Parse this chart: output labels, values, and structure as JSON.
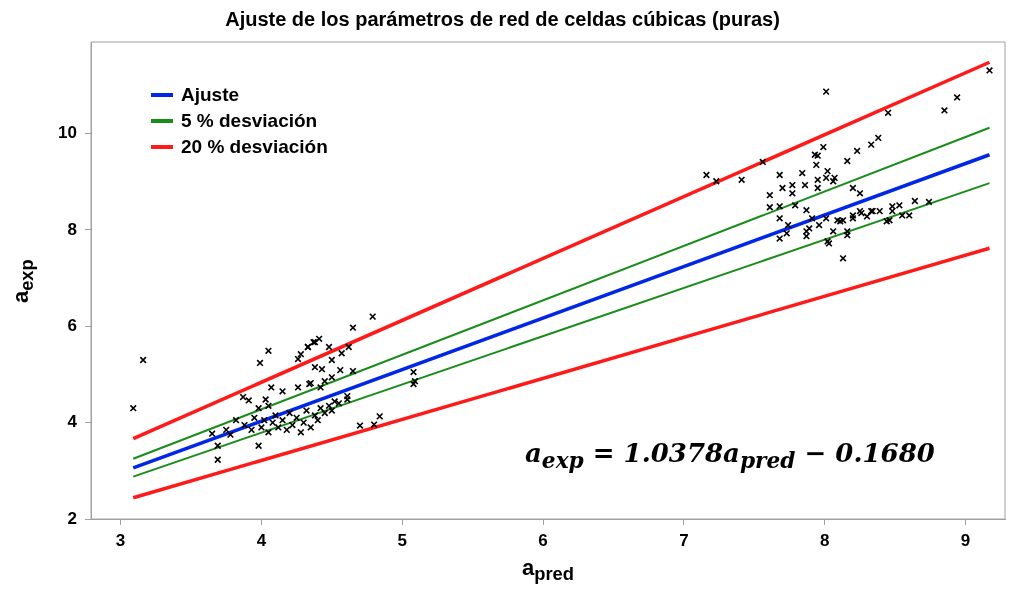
{
  "chart_data": {
    "type": "scatter",
    "title": "Ajuste de los parámetros de red de celdas cúbicas (puras)",
    "xlabel": "a$_{pred}$",
    "ylabel": "a$_{exp}$",
    "xlim": [
      2.79,
      9.28
    ],
    "ylim": [
      2,
      11.9
    ],
    "xticks": [
      3,
      4,
      5,
      6,
      7,
      8,
      9
    ],
    "yticks": [
      2,
      4,
      6,
      8,
      10
    ],
    "grid": false,
    "legend": "top left",
    "annotations": [
      "a$_{exp}$ = 1.0378a$_{pred}$ − 0.1680"
    ],
    "series": [
      {
        "color": "#000000",
        "marker": "cross",
        "x": [
          3.16,
          3.09,
          3.69,
          3.69,
          3.65,
          3.98,
          3.99,
          4.05,
          3.87,
          3.91,
          4.03,
          4.07,
          4.15,
          4.26,
          4.35,
          4.26,
          4.28,
          4.33,
          4.38,
          4.79,
          4.65,
          4.48,
          4.57,
          4.5,
          4.62,
          4.41,
          4.37,
          4.33,
          4.65,
          4.56,
          4.43,
          4.38,
          4.61,
          4.61,
          4.52,
          4.84,
          4.8,
          4.7,
          5.08,
          5.09,
          5.08,
          4.42,
          4.45,
          4.34,
          4.5,
          3.82,
          3.88,
          3.93,
          3.95,
          4.0,
          4.02,
          4.05,
          4.08,
          4.1,
          4.12,
          4.15,
          4.18,
          4.2,
          4.22,
          4.25,
          4.28,
          4.3,
          4.32,
          4.35,
          4.38,
          4.4,
          4.42,
          4.45,
          4.48,
          4.5,
          4.55,
          3.75,
          3.78,
          3.98,
          4.05,
          8.01,
          7.16,
          7.23,
          7.41,
          7.56,
          7.68,
          7.61,
          7.61,
          7.68,
          7.68,
          7.68,
          7.7,
          7.77,
          7.77,
          7.79,
          7.84,
          7.86,
          7.93,
          7.94,
          7.95,
          7.95,
          7.99,
          8.02,
          8.01,
          8.06,
          8.07,
          8.16,
          8.23,
          8.33,
          8.38,
          8.2,
          8.25,
          7.74,
          7.73,
          7.87,
          7.87,
          7.91,
          7.96,
          8.02,
          8.13,
          8.06,
          8.16,
          8.11,
          8.2,
          8.26,
          8.34,
          8.85,
          8.94,
          8.45,
          9.17,
          8.74,
          8.64,
          8.6,
          8.53,
          8.48,
          8.46,
          8.44,
          8.39,
          8.33,
          8.25,
          8.2,
          8.13,
          8.09,
          8.01,
          7.89,
          7.87,
          8.16,
          8.03,
          7.95,
          8.55,
          8.3,
          8.48
        ],
        "values": [
          5.3,
          4.3,
          3.23,
          3.52,
          3.77,
          3.52,
          5.24,
          5.49,
          4.53,
          4.46,
          4.48,
          4.73,
          4.65,
          4.73,
          4.82,
          5.32,
          5.42,
          5.57,
          5.67,
          6.2,
          5.97,
          5.57,
          5.44,
          5.3,
          5.57,
          5.74,
          5.67,
          5.57,
          5.07,
          5.09,
          5.11,
          5.15,
          4.55,
          4.48,
          4.44,
          4.13,
          3.96,
          3.94,
          5.05,
          4.86,
          4.8,
          4.73,
          4.86,
          4.8,
          4.94,
          4.05,
          3.95,
          3.85,
          4.1,
          3.9,
          4.05,
          3.8,
          4.0,
          4.15,
          3.9,
          4.05,
          3.85,
          4.2,
          3.95,
          4.1,
          3.8,
          4.0,
          4.25,
          3.9,
          4.15,
          4.05,
          4.3,
          4.2,
          4.35,
          4.25,
          4.4,
          3.85,
          3.75,
          4.3,
          4.35,
          10.87,
          9.14,
          9.01,
          9.04,
          9.41,
          9.14,
          8.72,
          8.47,
          8.49,
          8.24,
          7.82,
          8.87,
          8.93,
          8.76,
          8.51,
          9.18,
          8.93,
          9.56,
          9.35,
          9.04,
          8.87,
          9.72,
          9.22,
          9.08,
          9.01,
          9.08,
          9.43,
          9.64,
          9.77,
          9.91,
          8.87,
          8.76,
          8.1,
          7.93,
          8.41,
          7.97,
          8.24,
          8.1,
          7.76,
          7.41,
          7.97,
          7.97,
          8.18,
          8.3,
          8.35,
          8.39,
          10.48,
          10.75,
          10.43,
          11.31,
          8.58,
          8.6,
          8.3,
          8.51,
          8.39,
          8.2,
          8.18,
          8.39,
          8.39,
          8.39,
          8.24,
          8.2,
          8.2,
          8.24,
          8.03,
          7.87,
          7.89,
          7.72,
          9.54,
          8.3,
          8.28,
          8.49
        ]
      },
      {
        "type": "line",
        "name": "Ajuste",
        "color": "#0026e6",
        "marker": "none",
        "x": [
          3.09,
          9.17
        ],
        "values": [
          3.06,
          9.56
        ]
      },
      {
        "type": "line",
        "name": "5 % desviación",
        "color": "#1a8c1a",
        "marker": "none",
        "x": [
          3.09,
          9.17
        ],
        "values": [
          3.25,
          10.12
        ]
      },
      {
        "type": "line",
        "color": "#1a8c1a",
        "marker": "none",
        "x": [
          3.09,
          9.17
        ],
        "values": [
          2.88,
          8.97
        ]
      },
      {
        "type": "line",
        "name": "20 % desviación",
        "color": "#ff1a1a",
        "marker": "none",
        "x": [
          3.09,
          9.17
        ],
        "values": [
          3.67,
          11.48
        ]
      },
      {
        "type": "line",
        "color": "#ff1a1a",
        "marker": "none",
        "x": [
          3.09,
          9.17
        ],
        "values": [
          2.44,
          7.62
        ]
      }
    ]
  }
}
